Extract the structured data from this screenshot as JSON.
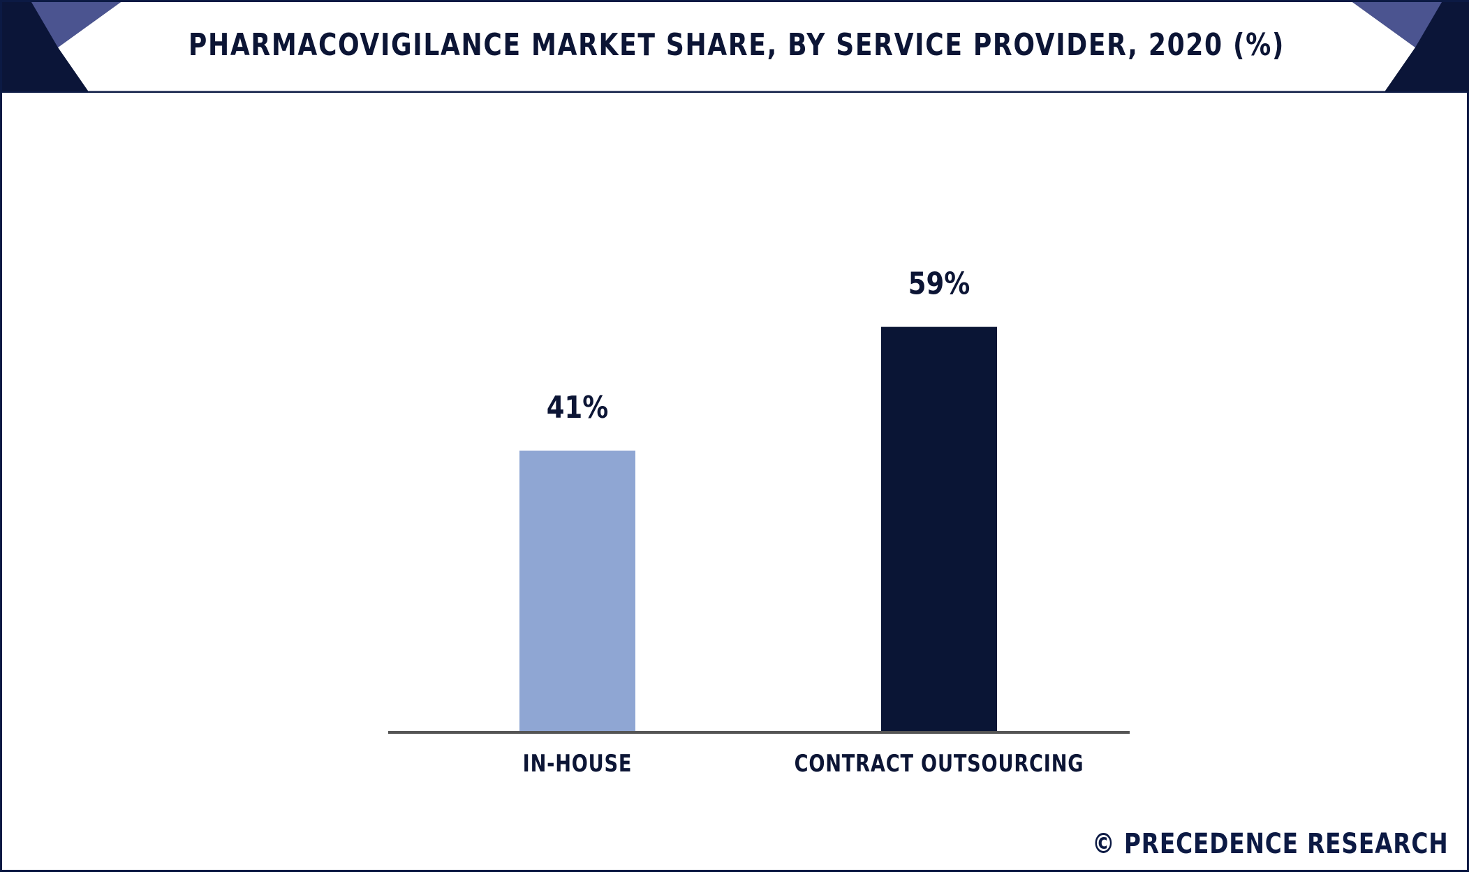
{
  "header": {
    "title": "PHARMACOVIGILANCE MARKET SHARE, BY SERVICE PROVIDER, 2020 (%)"
  },
  "footer": {
    "copyright_symbol": "©",
    "brand": "PRECEDENCE RESEARCH"
  },
  "colors": {
    "frame": "#0c1a44",
    "header_dark": "#0b1538",
    "header_accent": "#4b5490",
    "in_house": "#8fa6d3",
    "contract_outsourcing": "#0a1535",
    "axis": "#555555",
    "label_text": "#0c1535"
  },
  "chart_data": {
    "type": "bar",
    "title": "PHARMACOVIGILANCE MARKET SHARE, BY SERVICE PROVIDER, 2020 (%)",
    "categories": [
      "IN-HOUSE",
      "CONTRACT OUTSOURCING"
    ],
    "values": [
      41,
      59
    ],
    "value_labels": [
      "41%",
      "59%"
    ],
    "ylim": [
      0,
      70
    ],
    "grid": false,
    "legend": "none"
  }
}
